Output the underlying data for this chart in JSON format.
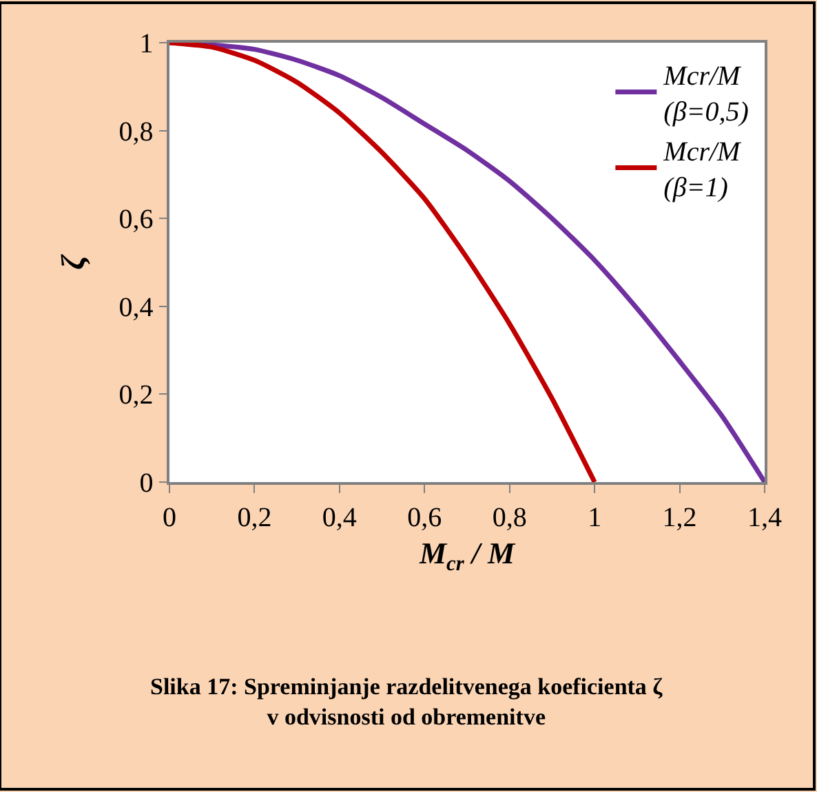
{
  "chart_data": {
    "type": "line",
    "xlabel": "M$_{cr}$ / M",
    "ylabel": "ζ",
    "x": [
      0,
      0.1,
      0.2,
      0.3,
      0.4,
      0.5,
      0.6,
      0.7,
      0.8,
      0.9,
      1.0,
      1.1,
      1.2,
      1.3,
      1.4
    ],
    "series": [
      {
        "name": "Mcr/M (β=0,5)",
        "color": "#7030a0",
        "values": [
          1,
          0.995,
          0.985,
          0.96,
          0.925,
          0.875,
          0.815,
          0.755,
          0.685,
          0.6,
          0.505,
          0.395,
          0.275,
          0.15,
          0
        ]
      },
      {
        "name": "Mcr/M (β=1)",
        "color": "#c00000",
        "x": [
          0,
          0.1,
          0.2,
          0.3,
          0.4,
          0.5,
          0.6,
          0.7,
          0.8,
          0.9,
          1.0
        ],
        "values": [
          1,
          0.99,
          0.96,
          0.91,
          0.84,
          0.75,
          0.645,
          0.51,
          0.36,
          0.19,
          0
        ]
      }
    ],
    "xlim": [
      0,
      1.4
    ],
    "xticks": [
      0,
      {
        "value": 0.2,
        "label": "0,2"
      },
      {
        "value": 0.4,
        "label": "0,4"
      },
      {
        "value": 0.6,
        "label": "0,6"
      },
      {
        "value": 0.8,
        "label": "0,8"
      },
      1,
      {
        "value": 1.2,
        "label": "1,2"
      },
      {
        "value": 1.4,
        "label": "1,4"
      }
    ],
    "ylim": [
      0,
      1
    ],
    "yticks": [
      0,
      {
        "value": 0.2,
        "label": "0,2"
      },
      {
        "value": 0.4,
        "label": "0,4"
      },
      {
        "value": 0.6,
        "label": "0,6"
      },
      {
        "value": 0.8,
        "label": "0,8"
      },
      1
    ],
    "legend": "top right",
    "marker": "none",
    "line_style": "solid",
    "annotations": [
      "Slika 17: Spreminjanje razdelitvenega koeficienta ζ v odvisnosti od obremenitve"
    ]
  }
}
